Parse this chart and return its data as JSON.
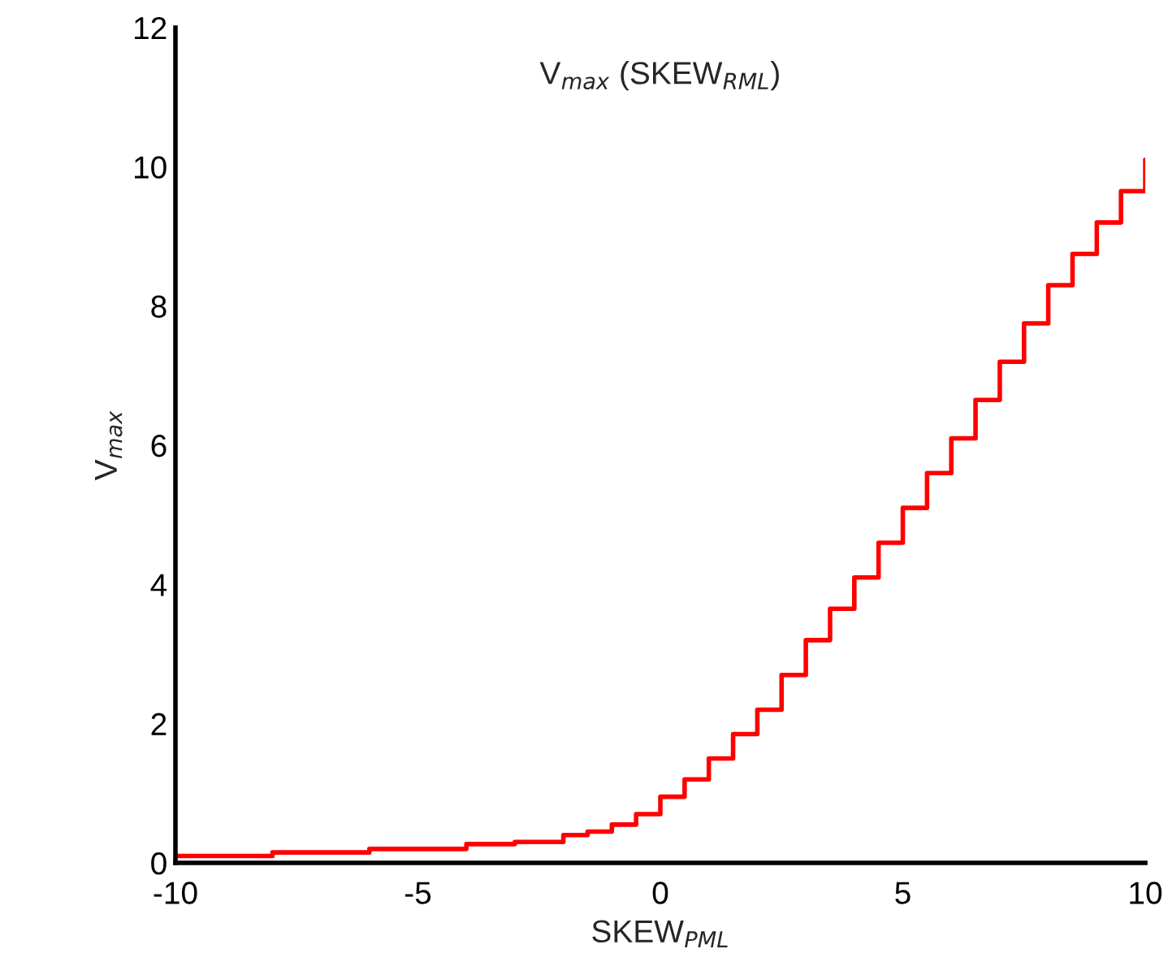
{
  "chart_data": {
    "type": "step",
    "title": "V$_{max}$ (SKEW$_{RML}$)",
    "xlabel": "SKEW$_{PML}$",
    "ylabel": "V$_{max}$",
    "x": [
      -10,
      -8,
      -6,
      -4,
      -3,
      -2,
      -1.5,
      -1,
      -0.5,
      0,
      0.5,
      1,
      1.5,
      2,
      2.5,
      3,
      3.5,
      4,
      4.5,
      5,
      5.5,
      6,
      6.5,
      7,
      7.5,
      8,
      8.5,
      9,
      9.5,
      10
    ],
    "series": [
      {
        "color": "#ff0000",
        "values": [
          0.1,
          0.15,
          0.2,
          0.27,
          0.3,
          0.4,
          0.45,
          0.55,
          0.7,
          0.95,
          1.2,
          1.5,
          1.85,
          2.2,
          2.7,
          3.2,
          3.65,
          4.1,
          4.6,
          5.1,
          5.6,
          6.1,
          6.65,
          7.2,
          7.75,
          8.3,
          8.75,
          9.2,
          9.65,
          10.1
        ]
      }
    ],
    "xlim": [
      -10,
      10
    ],
    "xticks": [
      -10,
      -5,
      0,
      5,
      10
    ],
    "ylim": [
      0,
      12
    ],
    "yticks": [
      0,
      2,
      4,
      6,
      8,
      10,
      12
    ],
    "grid": false,
    "legend": false
  }
}
